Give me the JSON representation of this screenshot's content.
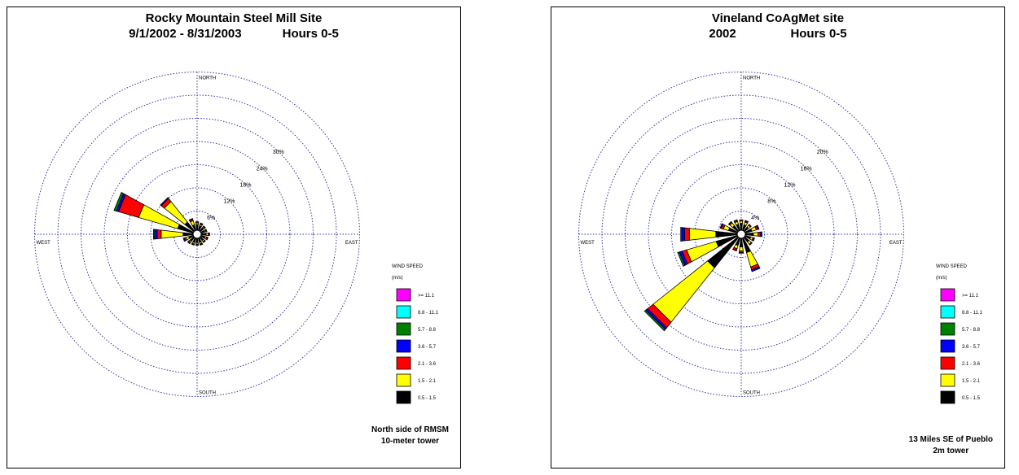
{
  "chart_data": [
    {
      "type": "wind-rose",
      "title": "Rocky Mountain Steel Mill Site",
      "subtitle_left": "9/1/2002 - 8/31/2003",
      "subtitle_right": "Hours 0-5",
      "ring_labels": [
        "6%",
        "12%",
        "18%",
        "24%",
        "30%"
      ],
      "ring_step_percent": 6,
      "directions": {
        "north": "NORTH",
        "south": "SOUTH",
        "east": "EAST",
        "west": "WEST"
      },
      "legend": {
        "title": "WIND SPEED",
        "units": "(m/s)",
        "classes": [
          {
            "label": ">= 11.1",
            "color": "#ff00ff"
          },
          {
            "label": "8.8 - 11.1",
            "color": "#00ffff"
          },
          {
            "label": "5.7 - 8.8",
            "color": "#008000"
          },
          {
            "label": "3.6 - 5.7",
            "color": "#0000ff"
          },
          {
            "label": "2.1 - 3.6",
            "color": "#ff0000"
          },
          {
            "label": "1.5 - 2.1",
            "color": "#ffff00"
          },
          {
            "label": "0.5 - 1.5",
            "color": "#000000"
          }
        ]
      },
      "caption": [
        "North side of RMSM",
        "10-meter tower"
      ],
      "sectors": [
        {
          "dir": 0,
          "bands": [
            1.5,
            0.4,
            0.2,
            0.1
          ]
        },
        {
          "dir": 22.5,
          "bands": [
            1.2,
            0.4,
            0.3,
            0.1
          ]
        },
        {
          "dir": 45,
          "bands": [
            1.1,
            0.3,
            0.2,
            0.1
          ]
        },
        {
          "dir": 67.5,
          "bands": [
            1.0,
            0.3,
            0.2,
            0.1
          ]
        },
        {
          "dir": 90,
          "bands": [
            1.3,
            0.5,
            0.3,
            0.1
          ]
        },
        {
          "dir": 112.5,
          "bands": [
            1.1,
            0.4,
            0.3,
            0.1
          ]
        },
        {
          "dir": 135,
          "bands": [
            1.0,
            0.4,
            0.2,
            0.1
          ]
        },
        {
          "dir": 157.5,
          "bands": [
            1.2,
            0.4,
            0.2,
            0.1
          ]
        },
        {
          "dir": 180,
          "bands": [
            1.1,
            0.4,
            0.2,
            0.1
          ]
        },
        {
          "dir": 202.5,
          "bands": [
            1.2,
            0.4,
            0.2,
            0.1
          ]
        },
        {
          "dir": 225,
          "bands": [
            1.3,
            0.4,
            0.3,
            0.1
          ]
        },
        {
          "dir": 247.5,
          "bands": [
            1.2,
            0.8,
            0.4,
            0.3
          ]
        },
        {
          "dir": 270,
          "bands": [
            2.6,
            5.7,
            1.0,
            0.7,
            0.3
          ]
        },
        {
          "dir": 292.5,
          "bands": [
            4.2,
            10.5,
            5.4,
            0.6,
            0.6
          ]
        },
        {
          "dir": 315,
          "bands": [
            3.0,
            6.8,
            1.0,
            0.3
          ]
        },
        {
          "dir": 337.5,
          "bands": [
            1.5,
            1.1,
            0.4,
            0.2
          ]
        }
      ]
    },
    {
      "type": "wind-rose",
      "title": "Vineland CoAgMet site",
      "subtitle_left": "2002",
      "subtitle_right": "Hours 0-5",
      "ring_labels": [
        "4%",
        "8%",
        "12%",
        "16%",
        "20%"
      ],
      "ring_step_percent": 4,
      "directions": {
        "north": "NORTH",
        "south": "SOUTH",
        "east": "EAST",
        "west": "WEST"
      },
      "legend": {
        "title": "WIND SPEED",
        "units": "(m/s)",
        "classes": [
          {
            "label": ">= 11.1",
            "color": "#ff00ff"
          },
          {
            "label": "8.8 - 11.1",
            "color": "#00ffff"
          },
          {
            "label": "5.7 - 8.8",
            "color": "#008000"
          },
          {
            "label": "3.6 - 5.7",
            "color": "#0000ff"
          },
          {
            "label": "2.1 - 3.6",
            "color": "#ff0000"
          },
          {
            "label": "1.5 - 2.1",
            "color": "#ffff00"
          },
          {
            "label": "0.5 - 1.5",
            "color": "#000000"
          }
        ]
      },
      "caption": [
        "13 Miles SE of Pueblo",
        "2m tower"
      ],
      "sectors": [
        {
          "dir": 0,
          "bands": [
            1.2,
            0.4,
            0.2
          ]
        },
        {
          "dir": 22.5,
          "bands": [
            1.0,
            0.5,
            0.2,
            0.1
          ]
        },
        {
          "dir": 45,
          "bands": [
            0.9,
            0.4,
            0.2
          ]
        },
        {
          "dir": 67.5,
          "bands": [
            1.2,
            0.8,
            0.3,
            0.2
          ]
        },
        {
          "dir": 90,
          "bands": [
            1.4,
            0.8,
            0.4,
            0.3
          ]
        },
        {
          "dir": 112.5,
          "bands": [
            1.0,
            0.4,
            0.2,
            0.1
          ]
        },
        {
          "dir": 135,
          "bands": [
            1.0,
            0.5,
            0.2
          ]
        },
        {
          "dir": 157.5,
          "bands": [
            2.6,
            2.6,
            0.5,
            0.3
          ]
        },
        {
          "dir": 180,
          "bands": [
            1.5,
            0.7,
            0.3,
            0.1
          ]
        },
        {
          "dir": 202.5,
          "bands": [
            1.3,
            0.6,
            0.3,
            0.1
          ]
        },
        {
          "dir": 225,
          "bands": [
            6.7,
            12.0,
            1.2,
            0.4,
            0.3
          ]
        },
        {
          "dir": 247.5,
          "bands": [
            3.8,
            5.3,
            0.8,
            0.5,
            0.3
          ]
        },
        {
          "dir": 270,
          "bands": [
            3.7,
            4.6,
            0.8,
            0.5,
            0.2
          ]
        },
        {
          "dir": 292.5,
          "bands": [
            1.6,
            0.9,
            0.4,
            0.2
          ]
        },
        {
          "dir": 315,
          "bands": [
            1.2,
            0.6,
            0.2,
            0.1
          ]
        },
        {
          "dir": 337.5,
          "bands": [
            1.1,
            0.5,
            0.2,
            0.1
          ]
        }
      ]
    }
  ]
}
